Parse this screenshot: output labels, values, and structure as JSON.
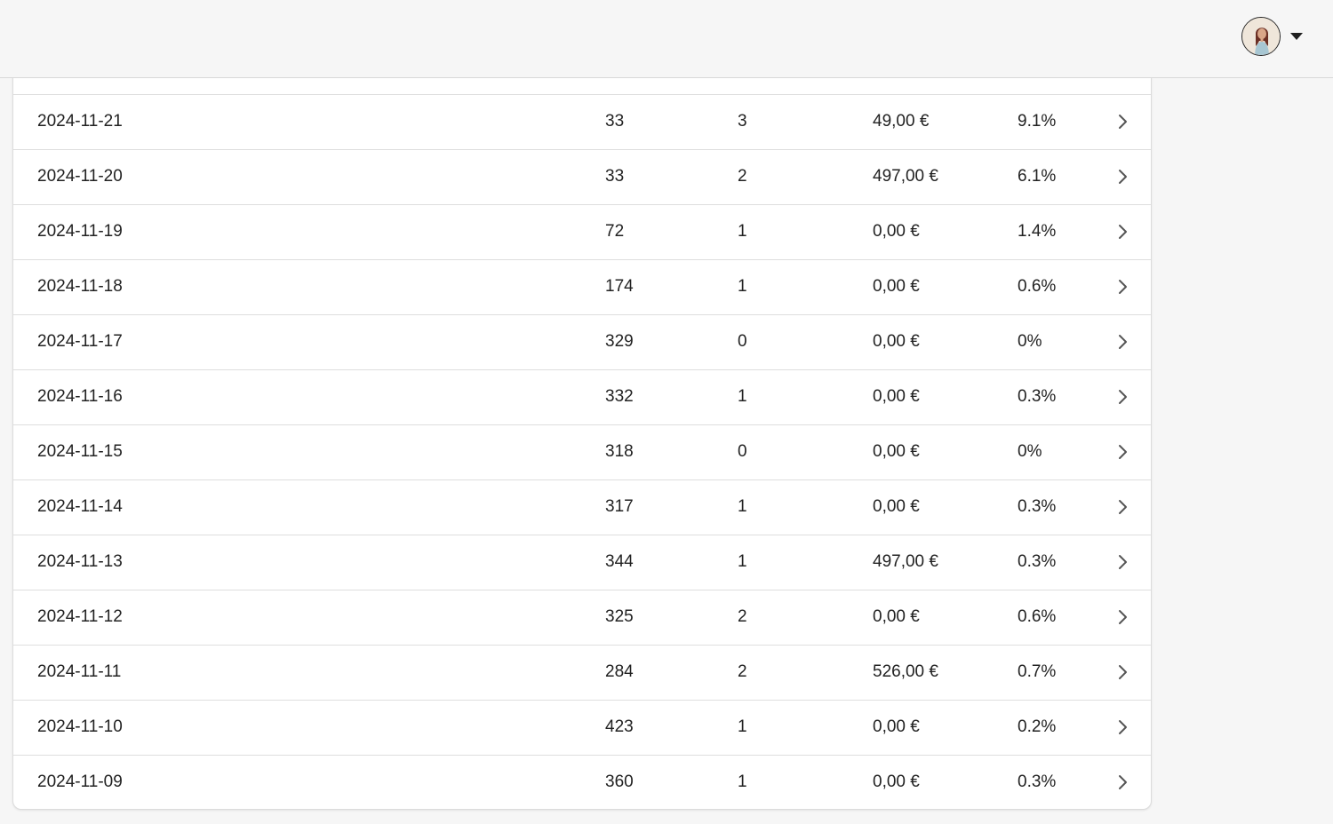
{
  "header": {
    "avatar_icon": "user-avatar",
    "menu_icon": "caret-down-icon"
  },
  "table": {
    "rows": [
      {
        "date": "2024-11-21",
        "visits": "33",
        "conversions": "3",
        "revenue": "49,00 €",
        "rate": "9.1%"
      },
      {
        "date": "2024-11-20",
        "visits": "33",
        "conversions": "2",
        "revenue": "497,00 €",
        "rate": "6.1%"
      },
      {
        "date": "2024-11-19",
        "visits": "72",
        "conversions": "1",
        "revenue": "0,00 €",
        "rate": "1.4%"
      },
      {
        "date": "2024-11-18",
        "visits": "174",
        "conversions": "1",
        "revenue": "0,00 €",
        "rate": "0.6%"
      },
      {
        "date": "2024-11-17",
        "visits": "329",
        "conversions": "0",
        "revenue": "0,00 €",
        "rate": "0%"
      },
      {
        "date": "2024-11-16",
        "visits": "332",
        "conversions": "1",
        "revenue": "0,00 €",
        "rate": "0.3%"
      },
      {
        "date": "2024-11-15",
        "visits": "318",
        "conversions": "0",
        "revenue": "0,00 €",
        "rate": "0%"
      },
      {
        "date": "2024-11-14",
        "visits": "317",
        "conversions": "1",
        "revenue": "0,00 €",
        "rate": "0.3%"
      },
      {
        "date": "2024-11-13",
        "visits": "344",
        "conversions": "1",
        "revenue": "497,00 €",
        "rate": "0.3%"
      },
      {
        "date": "2024-11-12",
        "visits": "325",
        "conversions": "2",
        "revenue": "0,00 €",
        "rate": "0.6%"
      },
      {
        "date": "2024-11-11",
        "visits": "284",
        "conversions": "2",
        "revenue": "526,00 €",
        "rate": "0.7%"
      },
      {
        "date": "2024-11-10",
        "visits": "423",
        "conversions": "1",
        "revenue": "0,00 €",
        "rate": "0.2%"
      },
      {
        "date": "2024-11-09",
        "visits": "360",
        "conversions": "1",
        "revenue": "0,00 €",
        "rate": "0.3%"
      }
    ],
    "row_icon": "chevron-right-icon"
  },
  "colors": {
    "background": "#f6f6f6",
    "card": "#ffffff",
    "divider": "#dedede",
    "text": "#222222",
    "chevron": "#555555"
  }
}
